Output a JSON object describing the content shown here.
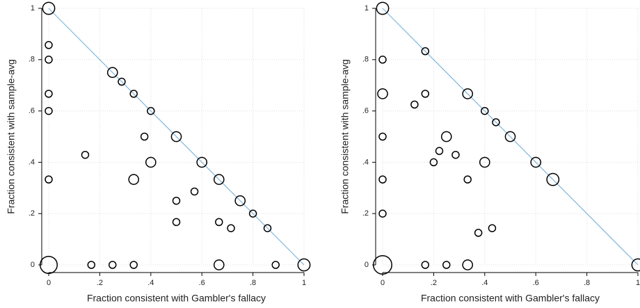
{
  "chart_data": [
    {
      "type": "scatter",
      "x_label": "Fraction consistent with Gambler's fallacy",
      "y_label": "Fraction consistent with sample-avg",
      "xlim": [
        0,
        1
      ],
      "ylim": [
        0,
        1
      ],
      "xticks": [
        0,
        {
          "value": 0.2,
          "label": ".2"
        },
        {
          "value": 0.4,
          "label": ".4"
        },
        {
          "value": 0.6,
          "label": ".6"
        },
        {
          "value": 0.8,
          "label": ".8"
        },
        1
      ],
      "yticks": [
        0,
        {
          "value": 0.2,
          "label": ".2"
        },
        {
          "value": 0.4,
          "label": ".4"
        },
        {
          "value": 0.6,
          "label": ".6"
        },
        {
          "value": 0.8,
          "label": ".8"
        },
        1
      ],
      "grid": true,
      "reference_line": {
        "x": [
          0,
          1
        ],
        "y": [
          1,
          0
        ],
        "color": "#7fb6dd"
      },
      "series": [
        {
          "color": "#000000",
          "x": [
            0,
            0,
            0,
            0,
            0,
            0,
            0,
            0.25,
            0.286,
            0.333,
            0.4,
            0.375,
            0.5,
            0.143,
            0.4,
            0.333,
            0.6,
            0.667,
            0.571,
            0.5,
            0.75,
            0.8,
            0.5,
            0.667,
            0.714,
            0.857,
            0.167,
            0.25,
            0.333,
            0.667,
            0.889,
            1
          ],
          "values": [
            1,
            0.857,
            0.8,
            0.667,
            0.6,
            0.333,
            0,
            0.75,
            0.714,
            0.667,
            0.6,
            0.5,
            0.5,
            0.429,
            0.4,
            0.333,
            0.4,
            0.333,
            0.286,
            0.25,
            0.25,
            0.2,
            0.167,
            0.167,
            0.143,
            0.143,
            0,
            0,
            0,
            0,
            0,
            0
          ],
          "sizes": [
            3,
            1,
            1,
            1,
            1,
            1,
            6,
            2,
            1,
            1,
            1,
            1,
            2,
            1,
            2,
            2,
            2,
            2,
            1,
            1,
            2,
            1,
            1,
            1,
            1,
            1,
            1,
            1,
            1,
            2,
            1,
            3
          ]
        }
      ]
    },
    {
      "type": "scatter",
      "x_label": "Fraction consistent with Gambler's fallacy",
      "y_label": "Fraction consistent with sample-avg",
      "xlim": [
        0,
        1
      ],
      "ylim": [
        0,
        1
      ],
      "xticks": [
        0,
        {
          "value": 0.2,
          "label": ".2"
        },
        {
          "value": 0.4,
          "label": ".4"
        },
        {
          "value": 0.6,
          "label": ".6"
        },
        {
          "value": 0.8,
          "label": ".8"
        },
        1
      ],
      "yticks": [
        0,
        {
          "value": 0.2,
          "label": ".2"
        },
        {
          "value": 0.4,
          "label": ".4"
        },
        {
          "value": 0.6,
          "label": ".6"
        },
        {
          "value": 0.8,
          "label": ".8"
        },
        1
      ],
      "grid": true,
      "reference_line": {
        "x": [
          0,
          1
        ],
        "y": [
          1,
          0
        ],
        "color": "#7fb6dd"
      },
      "series": [
        {
          "color": "#000000",
          "x": [
            0,
            0,
            0,
            0,
            0,
            0,
            0,
            0.167,
            0.167,
            0.125,
            0.333,
            0.4,
            0.444,
            0.5,
            0.25,
            0.222,
            0.2,
            0.286,
            0.4,
            0.6,
            0.667,
            0.333,
            0.375,
            0.429,
            0.167,
            0.25,
            0.333,
            1
          ],
          "values": [
            1,
            0.8,
            0.667,
            0.5,
            0.333,
            0.2,
            0,
            0.833,
            0.667,
            0.625,
            0.667,
            0.6,
            0.556,
            0.5,
            0.5,
            0.444,
            0.4,
            0.429,
            0.4,
            0.4,
            0.333,
            0.333,
            0.125,
            0.143,
            0,
            0,
            0,
            0
          ],
          "sizes": [
            3,
            1,
            2,
            1,
            1,
            1,
            7,
            1,
            1,
            1,
            2,
            1,
            1,
            2,
            2,
            1,
            1,
            1,
            2,
            2,
            3,
            1,
            1,
            1,
            1,
            1,
            2,
            3
          ]
        }
      ]
    }
  ]
}
